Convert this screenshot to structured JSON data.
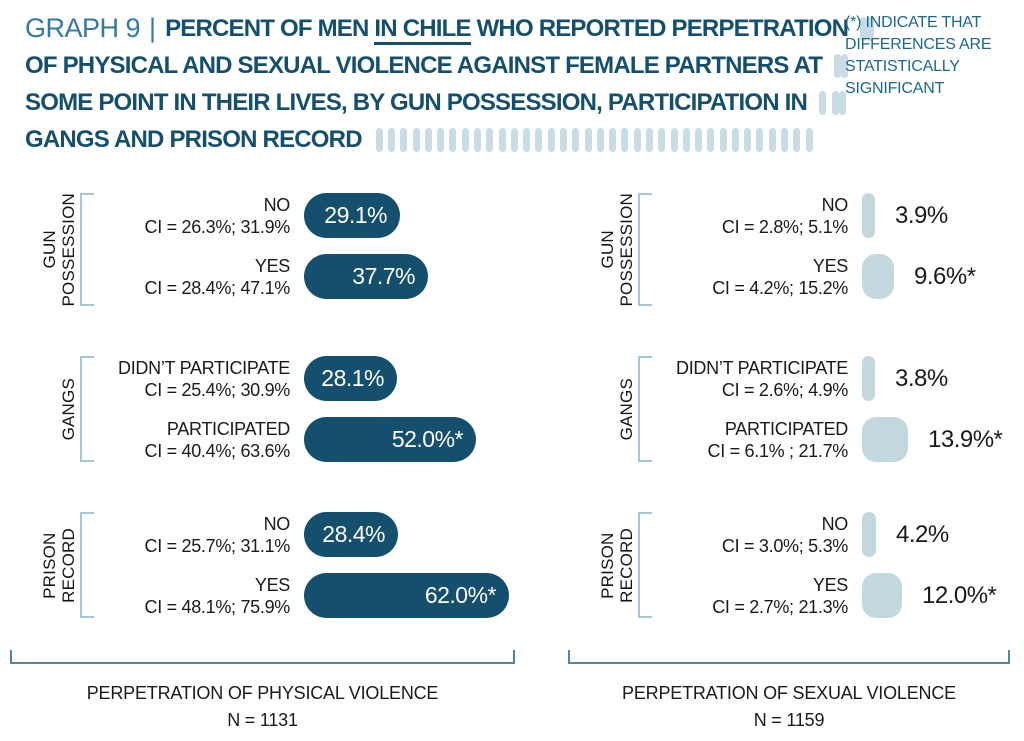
{
  "header": {
    "graph_label": "GRAPH 9",
    "separator": "|",
    "title_line1_pre": "PERCENT OF MEN ",
    "title_line1_underline": "IN CHILE",
    "title_line1_post": " WHO REPORTED PERPETRATION",
    "title_line2": "OF PHYSICAL AND SEXUAL VIOLENCE AGAINST FEMALE PARTNERS AT",
    "title_line3": "SOME POINT IN THEIR LIVES, BY GUN POSSESSION, PARTICIPATION IN",
    "title_line4": "GANGS AND PRISON RECORD",
    "significance_note": "(*) INDICATE THAT DIFFERENCES ARE STATISTICALLY SIGNIFICANT"
  },
  "colors": {
    "dark_bar": "#14506E",
    "light_bar": "#C3D7DF",
    "title_dark": "#14506E",
    "title_light": "#3279A4",
    "note_blue": "#1B6791",
    "bracket": "#A6C8D6",
    "axis": "#55869F",
    "dash": "#C9DCE3",
    "text_black": "#1A1A1A"
  },
  "decor": {
    "title_line_end_dashes": [
      1,
      1,
      2
    ],
    "bottom_dash_count": 36
  },
  "chart_data": [
    {
      "type": "bar",
      "orientation": "horizontal",
      "value_unit": "%",
      "axis_label": "PERPETRATION OF PHYSICAL VIOLENCE",
      "n_label": "N = 1131",
      "bar_style": "dark",
      "value_label_position": "inside",
      "xlim": [
        0,
        70
      ],
      "groups": [
        {
          "group": "GUN POSSESSION",
          "rows": [
            {
              "category": "NO",
              "ci": "CI = 26.3%; 31.9%",
              "value": 29.1,
              "label": "29.1%",
              "significant": false
            },
            {
              "category": "YES",
              "ci": "CI = 28.4%; 47.1%",
              "value": 37.7,
              "label": "37.7%",
              "significant": false
            }
          ]
        },
        {
          "group": "GANGS",
          "rows": [
            {
              "category": "DIDN’T PARTICIPATE",
              "ci": "CI = 25.4%; 30.9%",
              "value": 28.1,
              "label": "28.1%",
              "significant": false
            },
            {
              "category": "PARTICIPATED",
              "ci": "CI = 40.4%; 63.6%",
              "value": 52.0,
              "label": "52.0%*",
              "significant": true
            }
          ]
        },
        {
          "group": "PRISON RECORD",
          "rows": [
            {
              "category": "NO",
              "ci": "CI = 25.7%; 31.1%",
              "value": 28.4,
              "label": "28.4%",
              "significant": false
            },
            {
              "category": "YES",
              "ci": "CI = 48.1%; 75.9%",
              "value": 62.0,
              "label": "62.0%*",
              "significant": true
            }
          ]
        }
      ]
    },
    {
      "type": "bar",
      "orientation": "horizontal",
      "value_unit": "%",
      "axis_label": "PERPETRATION OF SEXUAL VIOLENCE",
      "n_label": "N = 1159",
      "bar_style": "light",
      "value_label_position": "outside",
      "xlim": [
        0,
        70
      ],
      "groups": [
        {
          "group": "GUN POSSESSION",
          "rows": [
            {
              "category": "NO",
              "ci": "CI = 2.8%; 5.1%",
              "value": 3.9,
              "label": "3.9%",
              "significant": false
            },
            {
              "category": "YES",
              "ci": "CI = 4.2%; 15.2%",
              "value": 9.6,
              "label": "9.6%*",
              "significant": true
            }
          ]
        },
        {
          "group": "GANGS",
          "rows": [
            {
              "category": "DIDN’T PARTICIPATE",
              "ci": "CI = 2.6%; 4.9%",
              "value": 3.8,
              "label": "3.8%",
              "significant": false
            },
            {
              "category": "PARTICIPATED",
              "ci": "CI = 6.1% ; 21.7%",
              "value": 13.9,
              "label": "13.9%*",
              "significant": true
            }
          ]
        },
        {
          "group": "PRISON RECORD",
          "rows": [
            {
              "category": "NO",
              "ci": "CI = 3.0%; 5.3%",
              "value": 4.2,
              "label": "4.2%",
              "significant": false
            },
            {
              "category": "YES",
              "ci": "CI = 2.7%; 21.3%",
              "value": 12.0,
              "label": "12.0%*",
              "significant": true
            }
          ]
        }
      ]
    }
  ]
}
